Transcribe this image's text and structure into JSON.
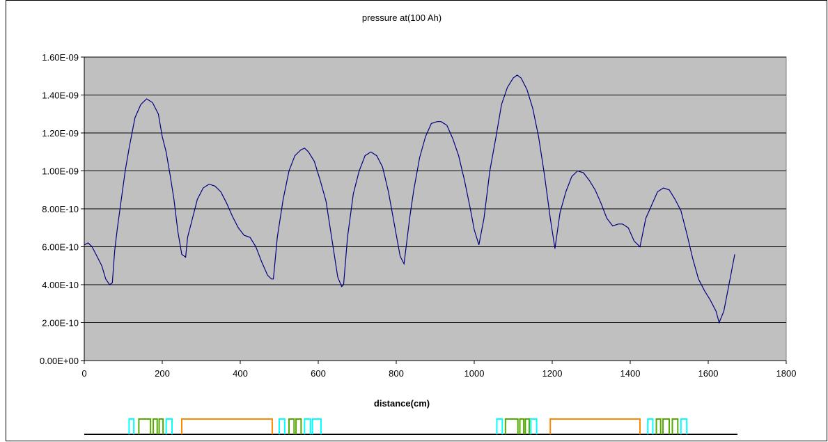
{
  "chart_data": {
    "type": "line",
    "title": "pressure at(100 Ah)",
    "xlabel": "distance(cm)",
    "ylabel": "",
    "xlim": [
      0,
      1800
    ],
    "ylim": [
      0,
      1.6e-09
    ],
    "x_ticks": [
      0,
      200,
      400,
      600,
      800,
      1000,
      1200,
      1400,
      1600,
      1800
    ],
    "x_tick_labels": [
      "0",
      "200",
      "400",
      "600",
      "800",
      "1000",
      "1200",
      "1400",
      "1600",
      "1800"
    ],
    "y_ticks": [
      0,
      2e-10,
      4e-10,
      6e-10,
      8e-10,
      1e-09,
      1.2e-09,
      1.4e-09,
      1.6e-09
    ],
    "y_tick_labels": [
      "0.00E+00",
      "2.00E-10",
      "4.00E-10",
      "6.00E-10",
      "8.00E-10",
      "1.00E-09",
      "1.20E-09",
      "1.40E-09",
      "1.60E-09"
    ],
    "grid": "horizontal",
    "plot_background": "#c0c0c0",
    "series": [
      {
        "color": "#000080",
        "x": [
          0,
          10,
          20,
          30,
          45,
          55,
          65,
          72,
          78,
          85,
          95,
          105,
          115,
          130,
          145,
          160,
          175,
          190,
          200,
          210,
          220,
          230,
          240,
          250,
          260,
          265,
          275,
          290,
          305,
          320,
          335,
          350,
          365,
          380,
          395,
          410,
          425,
          440,
          455,
          470,
          480,
          485,
          495,
          510,
          525,
          540,
          555,
          565,
          575,
          590,
          605,
          620,
          635,
          650,
          660,
          665,
          675,
          690,
          705,
          720,
          735,
          750,
          765,
          780,
          795,
          810,
          820,
          835,
          845,
          860,
          875,
          890,
          905,
          915,
          930,
          945,
          960,
          975,
          990,
          1000,
          1012,
          1025,
          1040,
          1055,
          1070,
          1085,
          1100,
          1110,
          1120,
          1135,
          1150,
          1165,
          1180,
          1195,
          1207,
          1220,
          1235,
          1250,
          1265,
          1280,
          1295,
          1310,
          1325,
          1340,
          1355,
          1370,
          1380,
          1395,
          1410,
          1425,
          1440,
          1455,
          1470,
          1485,
          1500,
          1515,
          1530,
          1545,
          1560,
          1575,
          1590,
          1605,
          1620,
          1628,
          1640,
          1655,
          1668
        ],
        "y": [
          6.1e-10,
          6.2e-10,
          6e-10,
          5.6e-10,
          5e-10,
          4.3e-10,
          4e-10,
          4.1e-10,
          5.8e-10,
          7e-10,
          8.5e-10,
          1e-09,
          1.12e-09,
          1.28e-09,
          1.35e-09,
          1.38e-09,
          1.36e-09,
          1.3e-09,
          1.18e-09,
          1.1e-09,
          9.8e-10,
          8.5e-10,
          6.8e-10,
          5.6e-10,
          5.45e-10,
          6.5e-10,
          7.3e-10,
          8.5e-10,
          9.1e-10,
          9.3e-10,
          9.2e-10,
          8.9e-10,
          8.3e-10,
          7.6e-10,
          7e-10,
          6.6e-10,
          6.5e-10,
          6e-10,
          5.2e-10,
          4.5e-10,
          4.3e-10,
          4.3e-10,
          6.5e-10,
          8.5e-10,
          1e-09,
          1.08e-09,
          1.11e-09,
          1.12e-09,
          1.1e-09,
          1.05e-09,
          9.5e-10,
          8.4e-10,
          6.4e-10,
          4.4e-10,
          3.9e-10,
          4e-10,
          6.5e-10,
          8.8e-10,
          1e-09,
          1.08e-09,
          1.1e-09,
          1.08e-09,
          1.02e-09,
          8.9e-10,
          7.2e-10,
          5.5e-10,
          5.1e-10,
          7.6e-10,
          9e-10,
          1.07e-09,
          1.18e-09,
          1.25e-09,
          1.26e-09,
          1.26e-09,
          1.24e-09,
          1.17e-09,
          1.08e-09,
          9.5e-10,
          8e-10,
          6.9e-10,
          6.1e-10,
          7.5e-10,
          1e-09,
          1.17e-09,
          1.35e-09,
          1.44e-09,
          1.49e-09,
          1.505e-09,
          1.49e-09,
          1.43e-09,
          1.33e-09,
          1.18e-09,
          9.8e-10,
          7.5e-10,
          5.9e-10,
          7.8e-10,
          8.9e-10,
          9.7e-10,
          1e-09,
          9.9e-10,
          9.5e-10,
          9e-10,
          8.3e-10,
          7.5e-10,
          7.1e-10,
          7.2e-10,
          7.2e-10,
          7e-10,
          6.3e-10,
          6e-10,
          7.5e-10,
          8.2e-10,
          8.9e-10,
          9.1e-10,
          9e-10,
          8.5e-10,
          7.9e-10,
          6.7e-10,
          5.4e-10,
          4.3e-10,
          3.7e-10,
          3.2e-10,
          2.6e-10,
          2e-10,
          2.6e-10,
          4.2e-10,
          5.6e-10
        ]
      }
    ]
  },
  "layout_strip": {
    "baseline_color": "#000000",
    "items": [
      {
        "color": "#00ffff",
        "x0": 115,
        "x1": 127
      },
      {
        "color": "#55aa00",
        "x0": 140,
        "x1": 170
      },
      {
        "color": "#55aa00",
        "x0": 177,
        "x1": 187
      },
      {
        "color": "#55aa00",
        "x0": 192,
        "x1": 202
      },
      {
        "color": "#00ffff",
        "x0": 210,
        "x1": 225
      },
      {
        "color": "#ff8800",
        "x0": 250,
        "x1": 482
      },
      {
        "color": "#00ffff",
        "x0": 500,
        "x1": 514
      },
      {
        "color": "#55aa00",
        "x0": 525,
        "x1": 538
      },
      {
        "color": "#55aa00",
        "x0": 543,
        "x1": 556
      },
      {
        "color": "#00ffff",
        "x0": 565,
        "x1": 580
      },
      {
        "color": "#00ffff",
        "x0": 585,
        "x1": 607
      },
      {
        "color": "#00ffff",
        "x0": 1058,
        "x1": 1072
      },
      {
        "color": "#55aa00",
        "x0": 1080,
        "x1": 1112
      },
      {
        "color": "#55aa00",
        "x0": 1117,
        "x1": 1127
      },
      {
        "color": "#55aa00",
        "x0": 1131,
        "x1": 1141
      },
      {
        "color": "#00ffff",
        "x0": 1145,
        "x1": 1160
      },
      {
        "color": "#ff8800",
        "x0": 1195,
        "x1": 1425
      },
      {
        "color": "#00ffff",
        "x0": 1445,
        "x1": 1458
      },
      {
        "color": "#55aa00",
        "x0": 1467,
        "x1": 1478
      },
      {
        "color": "#55aa00",
        "x0": 1484,
        "x1": 1500
      },
      {
        "color": "#55aa00",
        "x0": 1508,
        "x1": 1522
      },
      {
        "color": "#00ffff",
        "x0": 1530,
        "x1": 1545
      }
    ]
  }
}
